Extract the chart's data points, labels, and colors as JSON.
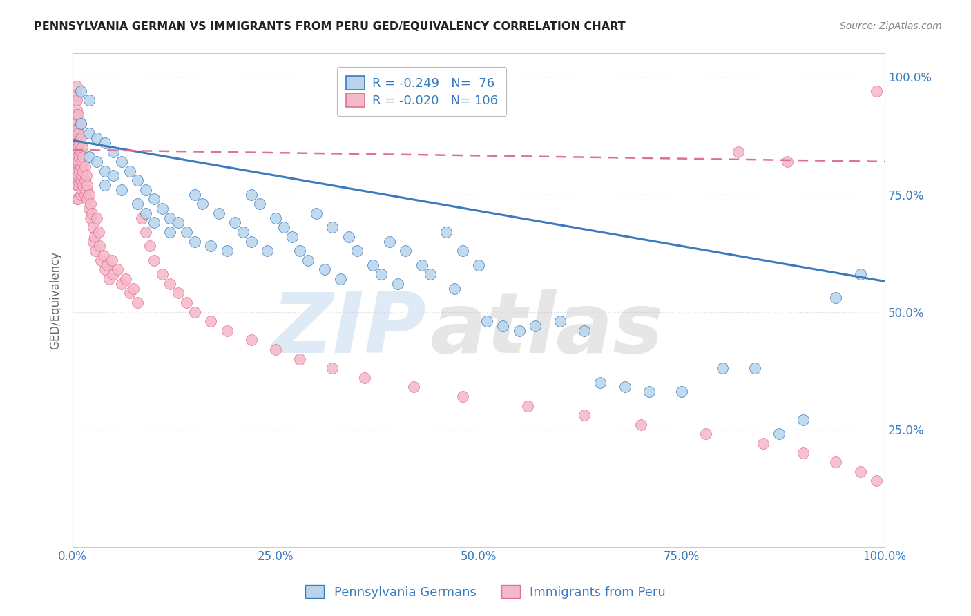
{
  "title": "PENNSYLVANIA GERMAN VS IMMIGRANTS FROM PERU GED/EQUIVALENCY CORRELATION CHART",
  "source": "Source: ZipAtlas.com",
  "ylabel": "GED/Equivalency",
  "xlabel": "",
  "blue_label": "Pennsylvania Germans",
  "pink_label": "Immigrants from Peru",
  "blue_R": -0.249,
  "blue_N": 76,
  "pink_R": -0.02,
  "pink_N": 106,
  "blue_color": "#b8d4ec",
  "pink_color": "#f5b8c8",
  "blue_line_color": "#3a7abf",
  "pink_line_color": "#e07090",
  "legend_text_color": "#3a7abf",
  "blue_line_start_y": 0.865,
  "blue_line_end_y": 0.565,
  "pink_line_start_y": 0.845,
  "pink_line_end_y": 0.82,
  "xlim": [
    0.0,
    1.0
  ],
  "ylim": [
    0.0,
    1.05
  ],
  "xticks": [
    0.0,
    0.25,
    0.5,
    0.75,
    1.0
  ],
  "xtick_labels": [
    "0.0%",
    "25.0%",
    "50.0%",
    "75.0%",
    "100.0%"
  ],
  "ytick_labels": [
    "25.0%",
    "50.0%",
    "75.0%",
    "100.0%"
  ],
  "yticks": [
    0.25,
    0.5,
    0.75,
    1.0
  ],
  "background_color": "#ffffff",
  "grid_color": "#dddddd",
  "blue_scatter_x": [
    0.01,
    0.01,
    0.02,
    0.02,
    0.02,
    0.03,
    0.03,
    0.04,
    0.04,
    0.04,
    0.05,
    0.05,
    0.06,
    0.06,
    0.07,
    0.08,
    0.08,
    0.09,
    0.09,
    0.1,
    0.1,
    0.11,
    0.12,
    0.12,
    0.13,
    0.14,
    0.15,
    0.15,
    0.16,
    0.17,
    0.18,
    0.19,
    0.2,
    0.21,
    0.22,
    0.22,
    0.23,
    0.24,
    0.25,
    0.26,
    0.27,
    0.28,
    0.29,
    0.3,
    0.31,
    0.32,
    0.33,
    0.34,
    0.35,
    0.37,
    0.38,
    0.39,
    0.4,
    0.41,
    0.43,
    0.44,
    0.46,
    0.47,
    0.48,
    0.5,
    0.51,
    0.53,
    0.55,
    0.57,
    0.6,
    0.63,
    0.65,
    0.68,
    0.71,
    0.75,
    0.8,
    0.84,
    0.87,
    0.9,
    0.94,
    0.97
  ],
  "blue_scatter_y": [
    0.97,
    0.9,
    0.95,
    0.88,
    0.83,
    0.87,
    0.82,
    0.86,
    0.8,
    0.77,
    0.84,
    0.79,
    0.82,
    0.76,
    0.8,
    0.78,
    0.73,
    0.76,
    0.71,
    0.74,
    0.69,
    0.72,
    0.7,
    0.67,
    0.69,
    0.67,
    0.75,
    0.65,
    0.73,
    0.64,
    0.71,
    0.63,
    0.69,
    0.67,
    0.75,
    0.65,
    0.73,
    0.63,
    0.7,
    0.68,
    0.66,
    0.63,
    0.61,
    0.71,
    0.59,
    0.68,
    0.57,
    0.66,
    0.63,
    0.6,
    0.58,
    0.65,
    0.56,
    0.63,
    0.6,
    0.58,
    0.67,
    0.55,
    0.63,
    0.6,
    0.48,
    0.47,
    0.46,
    0.47,
    0.48,
    0.46,
    0.35,
    0.34,
    0.33,
    0.33,
    0.38,
    0.38,
    0.24,
    0.27,
    0.53,
    0.58
  ],
  "pink_scatter_x": [
    0.005,
    0.005,
    0.005,
    0.005,
    0.005,
    0.005,
    0.005,
    0.005,
    0.005,
    0.005,
    0.005,
    0.005,
    0.005,
    0.005,
    0.005,
    0.005,
    0.007,
    0.007,
    0.007,
    0.007,
    0.007,
    0.007,
    0.007,
    0.007,
    0.007,
    0.007,
    0.007,
    0.008,
    0.008,
    0.008,
    0.008,
    0.01,
    0.01,
    0.01,
    0.01,
    0.01,
    0.01,
    0.012,
    0.012,
    0.012,
    0.012,
    0.013,
    0.013,
    0.013,
    0.015,
    0.015,
    0.015,
    0.017,
    0.017,
    0.018,
    0.018,
    0.02,
    0.02,
    0.022,
    0.022,
    0.024,
    0.025,
    0.025,
    0.027,
    0.028,
    0.03,
    0.032,
    0.033,
    0.035,
    0.038,
    0.04,
    0.042,
    0.045,
    0.048,
    0.05,
    0.055,
    0.06,
    0.065,
    0.07,
    0.075,
    0.08,
    0.085,
    0.09,
    0.095,
    0.1,
    0.11,
    0.12,
    0.13,
    0.14,
    0.15,
    0.17,
    0.19,
    0.22,
    0.25,
    0.28,
    0.32,
    0.36,
    0.42,
    0.48,
    0.56,
    0.63,
    0.7,
    0.78,
    0.85,
    0.9,
    0.94,
    0.97,
    0.99,
    0.99,
    0.82,
    0.88
  ],
  "pink_scatter_y": [
    0.96,
    0.93,
    0.9,
    0.87,
    0.84,
    0.81,
    0.78,
    0.98,
    0.95,
    0.92,
    0.89,
    0.86,
    0.83,
    0.8,
    0.77,
    0.74,
    0.92,
    0.89,
    0.86,
    0.83,
    0.8,
    0.77,
    0.74,
    0.88,
    0.85,
    0.82,
    0.79,
    0.86,
    0.83,
    0.8,
    0.77,
    0.9,
    0.87,
    0.84,
    0.81,
    0.78,
    0.75,
    0.85,
    0.82,
    0.79,
    0.76,
    0.83,
    0.8,
    0.77,
    0.81,
    0.78,
    0.75,
    0.79,
    0.76,
    0.77,
    0.74,
    0.75,
    0.72,
    0.73,
    0.7,
    0.71,
    0.68,
    0.65,
    0.66,
    0.63,
    0.7,
    0.67,
    0.64,
    0.61,
    0.62,
    0.59,
    0.6,
    0.57,
    0.61,
    0.58,
    0.59,
    0.56,
    0.57,
    0.54,
    0.55,
    0.52,
    0.7,
    0.67,
    0.64,
    0.61,
    0.58,
    0.56,
    0.54,
    0.52,
    0.5,
    0.48,
    0.46,
    0.44,
    0.42,
    0.4,
    0.38,
    0.36,
    0.34,
    0.32,
    0.3,
    0.28,
    0.26,
    0.24,
    0.22,
    0.2,
    0.18,
    0.16,
    0.14,
    0.97,
    0.84,
    0.82
  ]
}
